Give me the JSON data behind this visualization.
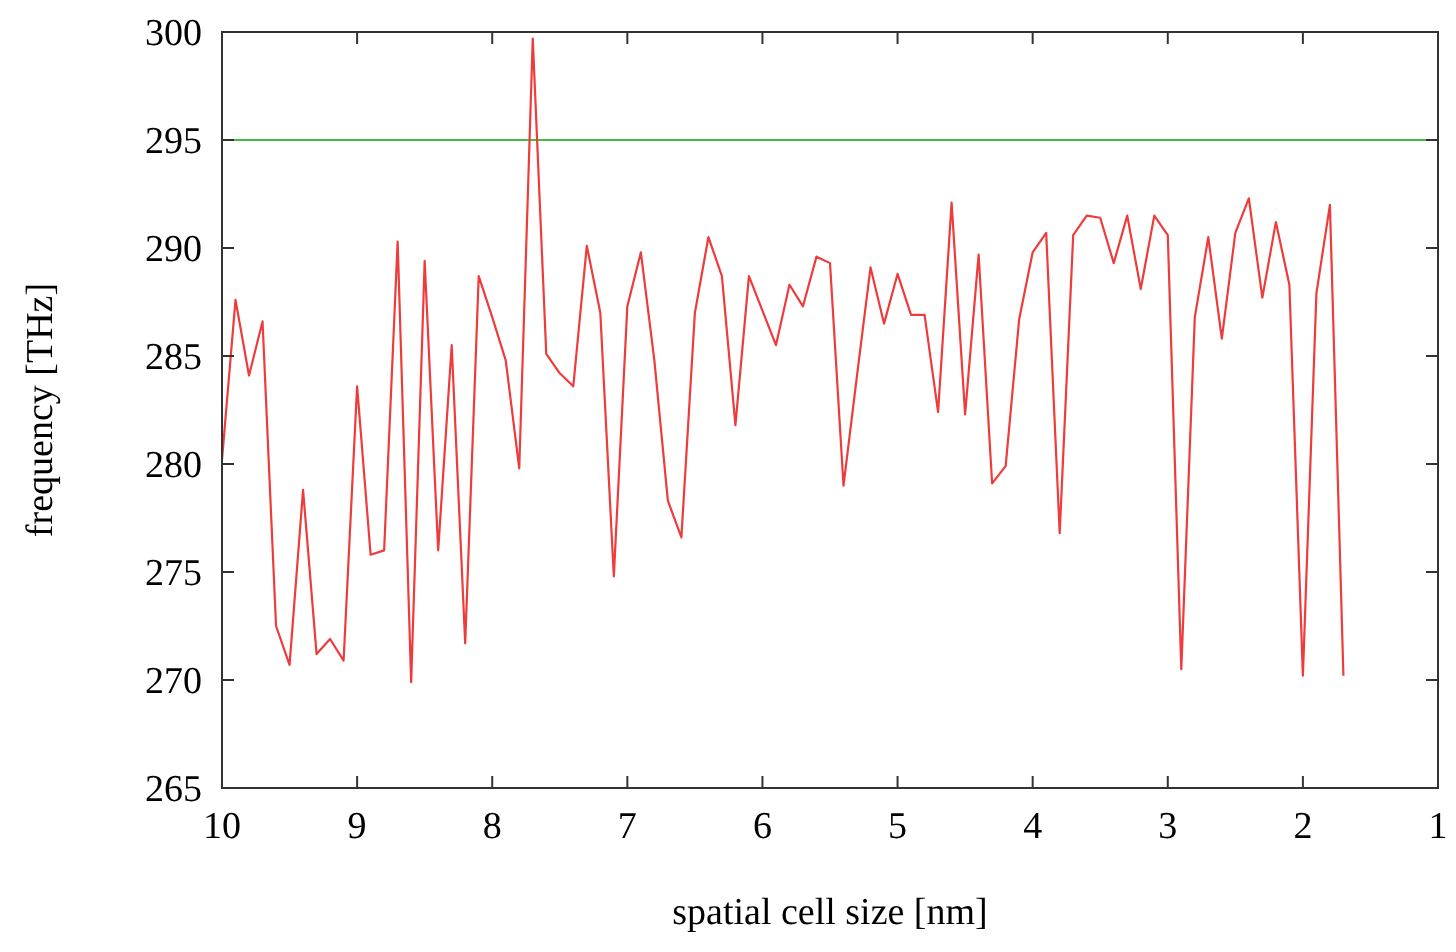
{
  "chart_data": {
    "type": "line",
    "xlabel": "spatial cell size [nm]",
    "ylabel": "frequency [THz]",
    "xlim": [
      10,
      1
    ],
    "xticks": [
      10,
      9,
      8,
      7,
      6,
      5,
      4,
      3,
      2,
      1
    ],
    "ylim": [
      265,
      300
    ],
    "yticks": [
      265,
      270,
      275,
      280,
      285,
      290,
      295,
      300
    ],
    "grid": false,
    "marker": "none",
    "line_style": "solid",
    "ref_lines": [
      {
        "axis": "y",
        "value": 295,
        "color": "#44bb44"
      }
    ],
    "series": [
      {
        "color": "#ee3b3b",
        "x": [
          10,
          9.9,
          9.8,
          9.7,
          9.6,
          9.5,
          9.4,
          9.3,
          9.2,
          9.1,
          9,
          8.9,
          8.8,
          8.7,
          8.6,
          8.5,
          8.4,
          8.3,
          8.2,
          8.1,
          8,
          7.9,
          7.8,
          7.7,
          7.6,
          7.5,
          7.4,
          7.3,
          7.2,
          7.1,
          7,
          6.9,
          6.8,
          6.7,
          6.6,
          6.5,
          6.4,
          6.3,
          6.2,
          6.1,
          6,
          5.9,
          5.8,
          5.7,
          5.6,
          5.5,
          5.4,
          5.3,
          5.2,
          5.1,
          5,
          4.9,
          4.8,
          4.7,
          4.6,
          4.5,
          4.4,
          4.3,
          4.2,
          4.1,
          4,
          3.9,
          3.8,
          3.7,
          3.6,
          3.5,
          3.4,
          3.3,
          3.2,
          3.1,
          3,
          2.9,
          2.8,
          2.7,
          2.6,
          2.5,
          2.4,
          2.3,
          2.2,
          2.1,
          2,
          1.9,
          1.8,
          1.7
        ],
        "values": [
          280.2,
          287.6,
          284.1,
          286.6,
          272.5,
          270.7,
          278.8,
          271.2,
          271.9,
          270.9,
          283.6,
          275.8,
          276,
          290.3,
          269.9,
          289.4,
          276,
          285.5,
          271.7,
          288.7,
          286.8,
          284.8,
          279.8,
          299.7,
          285.1,
          284.2,
          283.6,
          290.1,
          287,
          274.8,
          287.3,
          289.8,
          284.8,
          278.3,
          276.6,
          287,
          290.5,
          288.7,
          281.8,
          288.7,
          287.1,
          285.5,
          288.3,
          287.3,
          289.6,
          289.3,
          279,
          284.1,
          289.1,
          286.5,
          288.8,
          286.9,
          286.9,
          282.4,
          292.1,
          282.3,
          289.7,
          279.1,
          279.9,
          286.7,
          289.8,
          290.7,
          276.8,
          290.6,
          291.5,
          291.4,
          289.3,
          291.5,
          288.1,
          291.5,
          290.6,
          270.5,
          286.8,
          290.5,
          285.8,
          290.7,
          292.3,
          287.7,
          291.2,
          288.3,
          270.2,
          287.9,
          292,
          270.2
        ]
      }
    ]
  }
}
